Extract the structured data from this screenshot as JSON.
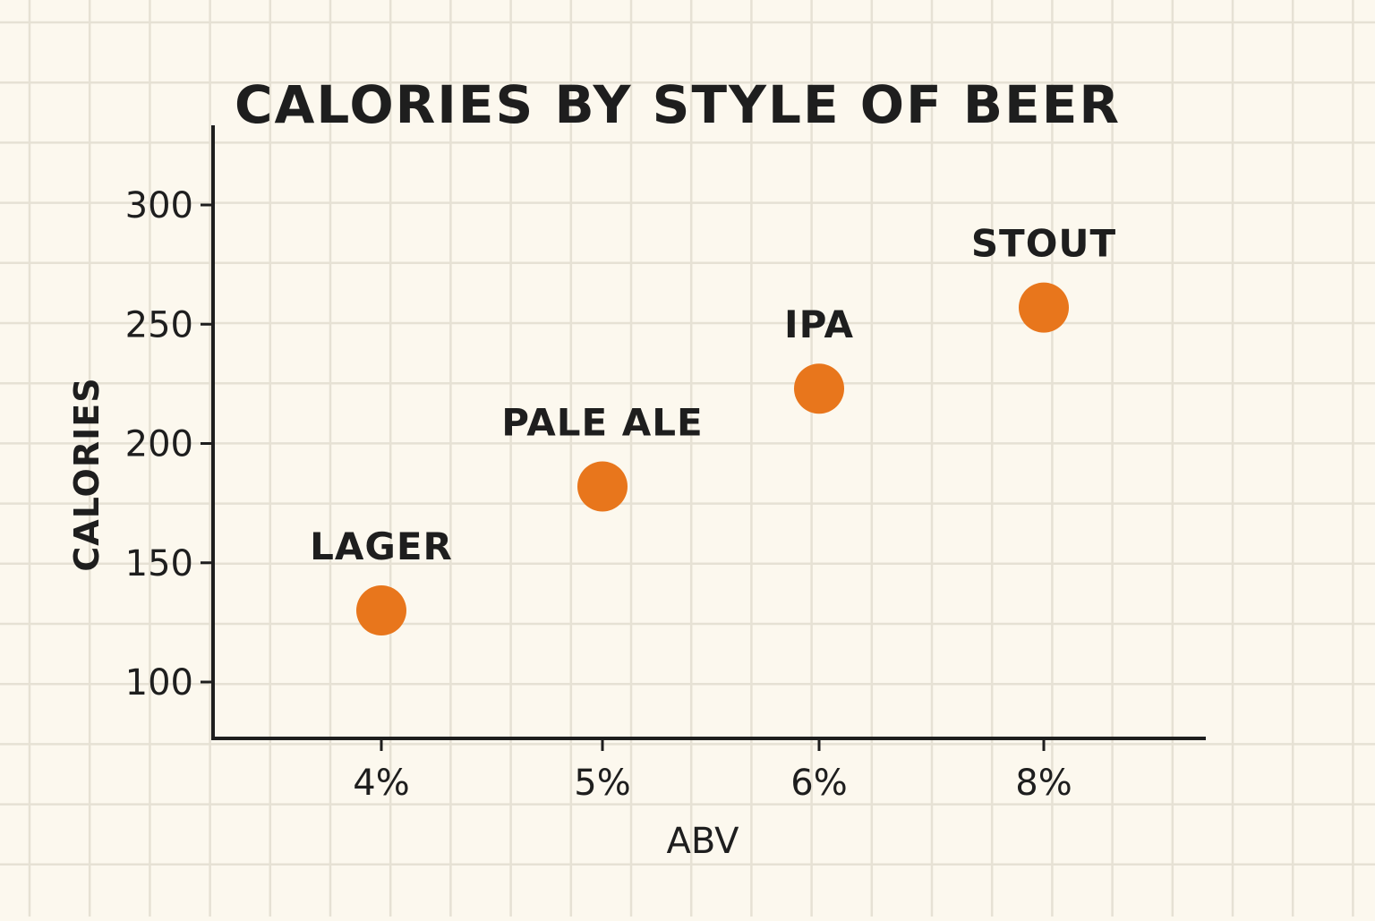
{
  "chart_data": {
    "type": "scatter",
    "title": "CALORIES BY STYLE OF BEER",
    "xlabel": "ABV",
    "ylabel": "CALORIES",
    "x_categories": [
      "4%",
      "5%",
      "6%",
      "8%"
    ],
    "y_ticks": [
      100,
      150,
      200,
      250,
      300
    ],
    "ylim": [
      77,
      333
    ],
    "grid": true,
    "points": [
      {
        "label": "LAGER",
        "x": "4%",
        "y": 130
      },
      {
        "label": "PALE ALE",
        "x": "5%",
        "y": 182
      },
      {
        "label": "IPA",
        "x": "6%",
        "y": 223
      },
      {
        "label": "STOUT",
        "x": "8%",
        "y": 257
      }
    ],
    "colors": {
      "background": "#fcf8ee",
      "grid": "#e6e1d4",
      "axis": "#1e1e1e",
      "point": "#e8761c"
    }
  }
}
